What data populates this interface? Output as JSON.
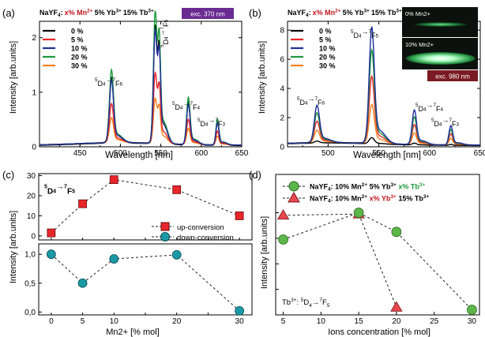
{
  "chart_data": [
    {
      "panel": "(a)",
      "type": "line",
      "header": {
        "host": "NaYF",
        "host_sub": "4",
        "colon": ":",
        "dopant_var": "x% Mn",
        "dopant_sup": "2+",
        "rest_a": "5% Yb",
        "rest_a_sup": "3+",
        "rest_b": "15% Tb",
        "rest_b_sup": "3+"
      },
      "excitation": "exc. 370 nm",
      "xlabel": "Wavelength [nm]",
      "ylabel": "Intensity [arb.units]",
      "xlim": [
        400,
        650
      ],
      "ylim": [
        0,
        2.3
      ],
      "xticks": [
        "450",
        "500",
        "550",
        "600",
        "650"
      ],
      "yticks": [
        "0",
        "1",
        "2"
      ],
      "legend": [
        "0 %",
        "5 %",
        "10 %",
        "20 %",
        "30 %"
      ],
      "colors": [
        "#000000",
        "#e8262b",
        "#1f2f9a",
        "#1e9a3c",
        "#f5821f"
      ],
      "series_peaks": [
        2.05,
        1.22,
        1.95,
        2.28,
        0.78
      ],
      "peaks": [
        {
          "center": 489,
          "width": 3.5,
          "rel": 0.55
        },
        {
          "center": 543,
          "width": 3.0,
          "rel": 1.0
        },
        {
          "center": 548,
          "width": 2.4,
          "rel": 0.72
        },
        {
          "center": 584,
          "width": 3.0,
          "rel": 0.36
        },
        {
          "center": 620,
          "width": 2.6,
          "rel": 0.2
        }
      ],
      "annotations": [
        "5D4→7F6",
        "5D4→7F5",
        "5D4→7F4",
        "5D4→7F3"
      ]
    },
    {
      "panel": "(b)",
      "type": "line",
      "header": {
        "host": "NaYF",
        "host_sub": "4",
        "colon": ":",
        "dopant_var": "x% Mn",
        "dopant_sup": "2+",
        "rest_a": "5% Yb",
        "rest_a_sup": "3+",
        "rest_b": "15% Tb",
        "rest_b_sup": "3+"
      },
      "inset_top": "0% Mn2+",
      "inset_bottom": "10% Mn2+",
      "excitation": "exc. 980 nm",
      "xlabel": "Wavelength [nm]",
      "ylabel": "Intensity [arb.units]",
      "xlim": [
        460,
        650
      ],
      "ylim": [
        0,
        8.6
      ],
      "xticks": [
        "500",
        "550",
        "600",
        "650"
      ],
      "yticks": [
        "0",
        "2",
        "4",
        "6",
        "8"
      ],
      "legend": [
        "0 %",
        "5 %",
        "10 %",
        "20 %",
        "30 %"
      ],
      "colors": [
        "#000000",
        "#e8262b",
        "#1f2f9a",
        "#1e9a3c",
        "#f5821f"
      ],
      "series_peaks": [
        0.4,
        4.3,
        7.5,
        6.0,
        2.5
      ],
      "peaks": [
        {
          "center": 489,
          "width": 3.5,
          "rel": 0.32
        },
        {
          "center": 543,
          "width": 3.5,
          "rel": 1.0
        },
        {
          "center": 585,
          "width": 3.0,
          "rel": 0.3
        },
        {
          "center": 621,
          "width": 2.6,
          "rel": 0.17
        }
      ],
      "annotations": [
        "5D4→7F6",
        "5D4→7F5",
        "5D4→7F4",
        "5D4→7F3"
      ]
    },
    {
      "panel": "(c)",
      "type": "scatter",
      "xlabel": "Mn2+ [% mol]",
      "ylabel": "Intensity [arb.units]",
      "transition": "5D4→7F5",
      "x": [
        0,
        5,
        10,
        20,
        30
      ],
      "xticks": [
        "0",
        "5",
        "10",
        "15",
        "20",
        "25",
        "30"
      ],
      "upper": {
        "name": "up-conversion",
        "values": [
          1.5,
          16,
          28,
          23,
          10
        ],
        "ylim": [
          -2,
          31
        ],
        "yticks": [
          "0",
          "10",
          "20",
          "30"
        ],
        "color": "#e8262b"
      },
      "lower": {
        "name": "down-conversion",
        "values": [
          1.0,
          0.5,
          0.92,
          0.99,
          0.02
        ],
        "ylim": [
          -0.05,
          1.18
        ],
        "yticks": [
          "0,0",
          "0,5",
          "1,0"
        ],
        "color": "#1a9aa5"
      }
    },
    {
      "panel": "(d)",
      "type": "scatter",
      "xlabel": "Ions concentration [% mol]",
      "ylabel": "Intensity [arb.units]",
      "xlim": [
        4,
        31
      ],
      "ylim": [
        0,
        1.1
      ],
      "xticks": [
        "5",
        "10",
        "15",
        "20",
        "25",
        "30"
      ],
      "corner_label": "Tb3+: 5D4→7F5",
      "series": [
        {
          "legend": [
            "NaYF",
            "4",
            ": 10% Mn",
            "2+",
            " 5% Yb",
            "3+",
            " x% Tb",
            "3+"
          ],
          "x": [
            5,
            15,
            20,
            30
          ],
          "values": [
            0.59,
            0.8,
            0.65,
            0.04
          ],
          "marker": "circle",
          "color": "#5db64a"
        },
        {
          "legend": [
            "NaYF",
            "4",
            ": 10% Mn",
            "2+",
            " x% Yb",
            "3+",
            " 15% Tb",
            "3+"
          ],
          "x": [
            5,
            15,
            20
          ],
          "values": [
            0.78,
            0.79,
            0.06
          ],
          "marker": "triangle",
          "color": "#e8474f"
        }
      ]
    }
  ]
}
